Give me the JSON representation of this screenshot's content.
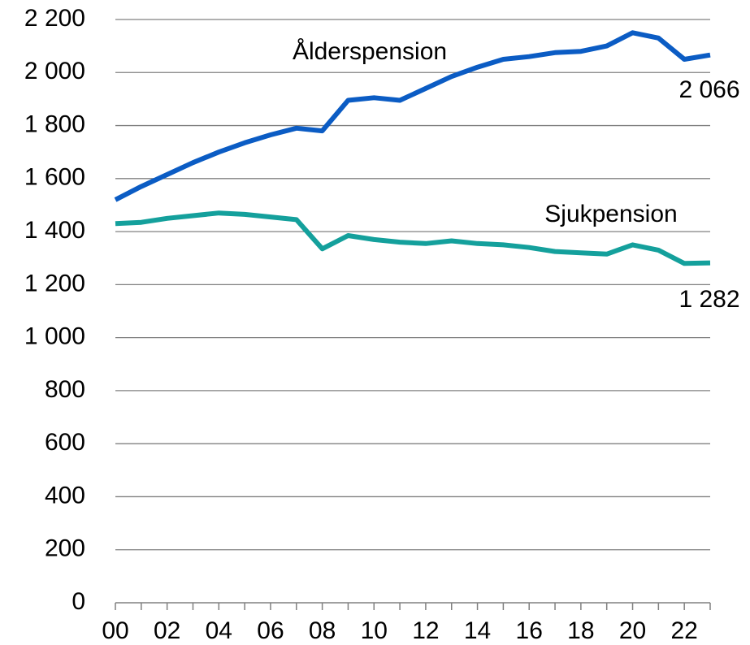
{
  "chart_data": {
    "type": "line",
    "categories": [
      "00",
      null,
      "02",
      null,
      "04",
      null,
      "06",
      null,
      "08",
      null,
      "10",
      null,
      "12",
      null,
      "14",
      null,
      "16",
      null,
      "18",
      null,
      "20",
      null,
      "22",
      null
    ],
    "series": [
      {
        "name": "Ålderspension",
        "color": "#0b5cc4",
        "values": [
          1520,
          1570,
          1615,
          1660,
          1700,
          1735,
          1765,
          1790,
          1780,
          1895,
          1905,
          1895,
          1940,
          1985,
          2020,
          2050,
          2060,
          2075,
          2080,
          2100,
          2150,
          2130,
          2050,
          2066
        ],
        "value_labels": [
          null,
          null,
          null,
          null,
          null,
          null,
          null,
          null,
          null,
          null,
          null,
          null,
          null,
          null,
          null,
          null,
          null,
          null,
          null,
          null,
          null,
          null,
          null,
          "2 066"
        ]
      },
      {
        "name": "Sjukpension",
        "color": "#14a09c",
        "values": [
          1430,
          1435,
          1450,
          1460,
          1470,
          1465,
          1455,
          1445,
          1335,
          1385,
          1370,
          1360,
          1355,
          1365,
          1355,
          1350,
          1340,
          1325,
          1320,
          1315,
          1350,
          1330,
          1280,
          1282
        ],
        "value_labels": [
          null,
          null,
          null,
          null,
          null,
          null,
          null,
          null,
          null,
          null,
          null,
          null,
          null,
          null,
          null,
          null,
          null,
          null,
          null,
          null,
          null,
          null,
          null,
          "1 282"
        ]
      }
    ],
    "ylim": [
      0,
      2200
    ],
    "yticks": [
      0,
      200,
      400,
      600,
      800,
      {
        "value": 1000,
        "label": "1 000"
      },
      {
        "value": 1200,
        "label": "1 200"
      },
      {
        "value": 1400,
        "label": "1 400"
      },
      {
        "value": 1600,
        "label": "1 600"
      },
      {
        "value": 1800,
        "label": "1 800"
      },
      {
        "value": 2000,
        "label": "2 000"
      },
      {
        "value": 2200,
        "label": "2 200"
      }
    ],
    "grid": true
  }
}
